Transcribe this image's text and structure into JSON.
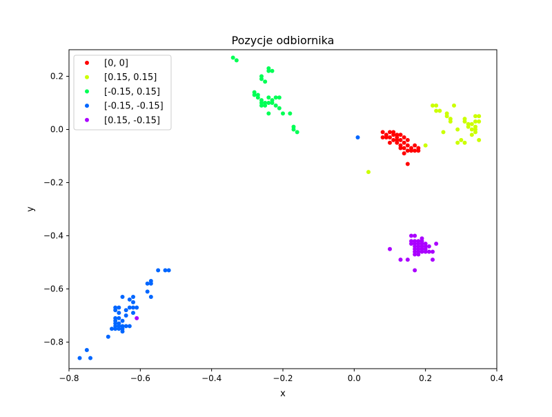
{
  "chart_data": {
    "type": "scatter",
    "title": "Pozycje odbiornika",
    "xlabel": "x",
    "ylabel": "y",
    "xlim": [
      -0.8,
      0.4
    ],
    "ylim": [
      -0.9,
      0.3
    ],
    "xticks": [
      -0.8,
      -0.6,
      -0.4,
      -0.2,
      0.0,
      0.2,
      0.4
    ],
    "xtick_labels": [
      "−0.8",
      "−0.6",
      "−0.4",
      "−0.2",
      "0.0",
      "0.2",
      "0.4"
    ],
    "yticks": [
      0.2,
      0.0,
      -0.2,
      -0.4,
      -0.6,
      -0.8
    ],
    "ytick_labels": [
      "0.2",
      "0.0",
      "−0.2",
      "−0.4",
      "−0.6",
      "−0.8"
    ],
    "grid": false,
    "legend_position": "top-left",
    "series": [
      {
        "name": "[0, 0]",
        "color": "#ff0000",
        "points": [
          [
            0.08,
            -0.01
          ],
          [
            0.09,
            -0.02
          ],
          [
            0.1,
            -0.01
          ],
          [
            0.11,
            -0.01
          ],
          [
            0.12,
            -0.02
          ],
          [
            0.09,
            -0.03
          ],
          [
            0.1,
            -0.03
          ],
          [
            0.11,
            -0.04
          ],
          [
            0.12,
            -0.03
          ],
          [
            0.13,
            -0.02
          ],
          [
            0.08,
            -0.03
          ],
          [
            0.13,
            -0.04
          ],
          [
            0.14,
            -0.03
          ],
          [
            0.15,
            -0.04
          ],
          [
            0.12,
            -0.05
          ],
          [
            0.13,
            -0.06
          ],
          [
            0.14,
            -0.05
          ],
          [
            0.15,
            -0.06
          ],
          [
            0.16,
            -0.07
          ],
          [
            0.17,
            -0.06
          ],
          [
            0.18,
            -0.07
          ],
          [
            0.16,
            -0.08
          ],
          [
            0.14,
            -0.07
          ],
          [
            0.15,
            -0.08
          ],
          [
            0.13,
            -0.07
          ],
          [
            0.1,
            -0.05
          ],
          [
            0.11,
            -0.02
          ],
          [
            0.17,
            -0.08
          ],
          [
            0.18,
            -0.08
          ],
          [
            0.15,
            -0.13
          ],
          [
            0.14,
            -0.09
          ],
          [
            0.12,
            -0.04
          ]
        ]
      },
      {
        "name": "[0.15, 0.15]",
        "color": "#ccff00",
        "points": [
          [
            0.04,
            -0.16
          ],
          [
            0.2,
            -0.06
          ],
          [
            0.22,
            0.09
          ],
          [
            0.23,
            0.09
          ],
          [
            0.23,
            0.07
          ],
          [
            0.24,
            0.07
          ],
          [
            0.25,
            -0.01
          ],
          [
            0.26,
            0.06
          ],
          [
            0.26,
            0.05
          ],
          [
            0.27,
            0.04
          ],
          [
            0.27,
            0.03
          ],
          [
            0.28,
            0.09
          ],
          [
            0.29,
            0.0
          ],
          [
            0.29,
            -0.05
          ],
          [
            0.3,
            -0.04
          ],
          [
            0.31,
            0.04
          ],
          [
            0.31,
            0.03
          ],
          [
            0.31,
            -0.05
          ],
          [
            0.32,
            0.02
          ],
          [
            0.32,
            0.01
          ],
          [
            0.33,
            0.02
          ],
          [
            0.33,
            0.0
          ],
          [
            0.33,
            -0.02
          ],
          [
            0.34,
            0.05
          ],
          [
            0.34,
            0.03
          ],
          [
            0.34,
            0.01
          ],
          [
            0.34,
            -0.01
          ],
          [
            0.35,
            0.05
          ],
          [
            0.35,
            0.03
          ],
          [
            0.35,
            -0.04
          ],
          [
            0.34,
            0.0
          ]
        ]
      },
      {
        "name": "[-0.15, 0.15]",
        "color": "#00ff55",
        "points": [
          [
            -0.34,
            0.27
          ],
          [
            -0.33,
            0.26
          ],
          [
            -0.24,
            0.23
          ],
          [
            -0.24,
            0.22
          ],
          [
            -0.23,
            0.22
          ],
          [
            -0.26,
            0.2
          ],
          [
            -0.26,
            0.19
          ],
          [
            -0.25,
            0.18
          ],
          [
            -0.28,
            0.14
          ],
          [
            -0.28,
            0.13
          ],
          [
            -0.27,
            0.13
          ],
          [
            -0.27,
            0.12
          ],
          [
            -0.26,
            0.11
          ],
          [
            -0.26,
            0.1
          ],
          [
            -0.25,
            0.1
          ],
          [
            -0.25,
            0.09
          ],
          [
            -0.24,
            0.1
          ],
          [
            -0.24,
            0.12
          ],
          [
            -0.23,
            0.11
          ],
          [
            -0.23,
            0.1
          ],
          [
            -0.22,
            0.12
          ],
          [
            -0.22,
            0.09
          ],
          [
            -0.21,
            0.08
          ],
          [
            -0.21,
            0.12
          ],
          [
            -0.2,
            0.06
          ],
          [
            -0.24,
            0.06
          ],
          [
            -0.18,
            0.06
          ],
          [
            -0.17,
            0.01
          ],
          [
            -0.17,
            0.0
          ],
          [
            -0.16,
            -0.01
          ],
          [
            -0.26,
            0.09
          ]
        ]
      },
      {
        "name": "[-0.15, -0.15]",
        "color": "#0066ff",
        "points": [
          [
            0.01,
            -0.03
          ],
          [
            -0.52,
            -0.53
          ],
          [
            -0.53,
            -0.53
          ],
          [
            -0.55,
            -0.53
          ],
          [
            -0.57,
            -0.57
          ],
          [
            -0.58,
            -0.58
          ],
          [
            -0.57,
            -0.58
          ],
          [
            -0.58,
            -0.61
          ],
          [
            -0.57,
            -0.63
          ],
          [
            -0.62,
            -0.63
          ],
          [
            -0.63,
            -0.64
          ],
          [
            -0.62,
            -0.65
          ],
          [
            -0.62,
            -0.67
          ],
          [
            -0.61,
            -0.67
          ],
          [
            -0.63,
            -0.67
          ],
          [
            -0.65,
            -0.63
          ],
          [
            -0.66,
            -0.67
          ],
          [
            -0.67,
            -0.67
          ],
          [
            -0.67,
            -0.68
          ],
          [
            -0.66,
            -0.69
          ],
          [
            -0.64,
            -0.68
          ],
          [
            -0.62,
            -0.69
          ],
          [
            -0.64,
            -0.7
          ],
          [
            -0.67,
            -0.71
          ],
          [
            -0.66,
            -0.71
          ],
          [
            -0.65,
            -0.72
          ],
          [
            -0.67,
            -0.72
          ],
          [
            -0.66,
            -0.73
          ],
          [
            -0.67,
            -0.73
          ],
          [
            -0.67,
            -0.74
          ],
          [
            -0.66,
            -0.74
          ],
          [
            -0.65,
            -0.74
          ],
          [
            -0.64,
            -0.74
          ],
          [
            -0.63,
            -0.74
          ],
          [
            -0.67,
            -0.75
          ],
          [
            -0.66,
            -0.75
          ],
          [
            -0.65,
            -0.75
          ],
          [
            -0.65,
            -0.76
          ],
          [
            -0.68,
            -0.75
          ],
          [
            -0.69,
            -0.78
          ],
          [
            -0.75,
            -0.83
          ],
          [
            -0.77,
            -0.86
          ],
          [
            -0.74,
            -0.86
          ]
        ]
      },
      {
        "name": "[0.15, -0.15]",
        "color": "#aa00ff",
        "points": [
          [
            -0.61,
            -0.71
          ],
          [
            0.1,
            -0.45
          ],
          [
            0.13,
            -0.49
          ],
          [
            0.16,
            -0.4
          ],
          [
            0.17,
            -0.4
          ],
          [
            0.16,
            -0.42
          ],
          [
            0.17,
            -0.42
          ],
          [
            0.18,
            -0.42
          ],
          [
            0.19,
            -0.41
          ],
          [
            0.16,
            -0.43
          ],
          [
            0.17,
            -0.43
          ],
          [
            0.18,
            -0.43
          ],
          [
            0.19,
            -0.43
          ],
          [
            0.2,
            -0.43
          ],
          [
            0.17,
            -0.44
          ],
          [
            0.18,
            -0.44
          ],
          [
            0.19,
            -0.44
          ],
          [
            0.2,
            -0.44
          ],
          [
            0.17,
            -0.45
          ],
          [
            0.18,
            -0.45
          ],
          [
            0.19,
            -0.45
          ],
          [
            0.2,
            -0.45
          ],
          [
            0.21,
            -0.44
          ],
          [
            0.23,
            -0.43
          ],
          [
            0.17,
            -0.46
          ],
          [
            0.18,
            -0.46
          ],
          [
            0.19,
            -0.46
          ],
          [
            0.21,
            -0.46
          ],
          [
            0.22,
            -0.46
          ],
          [
            0.17,
            -0.47
          ],
          [
            0.18,
            -0.47
          ],
          [
            0.2,
            -0.46
          ],
          [
            0.22,
            -0.49
          ],
          [
            0.15,
            -0.49
          ],
          [
            0.17,
            -0.53
          ],
          [
            0.19,
            -0.42
          ]
        ]
      }
    ]
  }
}
